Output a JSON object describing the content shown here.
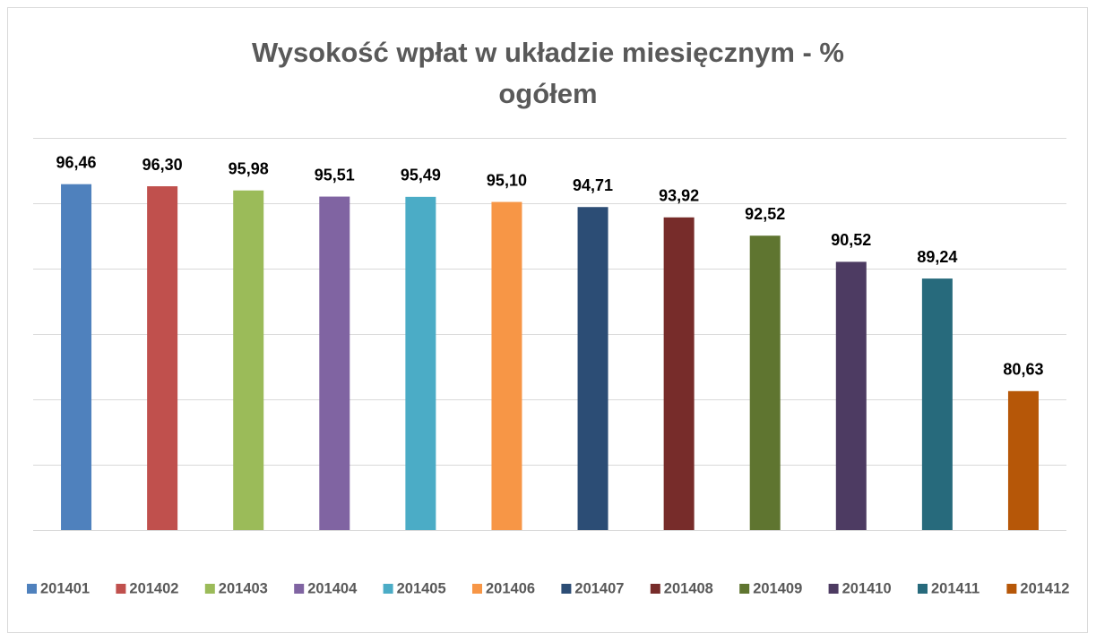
{
  "chart_data": {
    "type": "bar",
    "title": "Wysokość wpłat w układzie miesięcznym - % ogółem",
    "ylim": [
      70,
      100
    ],
    "yticks": [
      70,
      75,
      80,
      85,
      90,
      95,
      100
    ],
    "grid": true,
    "legend": "bottom",
    "series": [
      {
        "name": "201401",
        "color": "#4f81bd",
        "values": [
          96.46
        ],
        "value_labels": [
          "96,46"
        ]
      },
      {
        "name": "201402",
        "color": "#c0504d",
        "values": [
          96.3
        ],
        "value_labels": [
          "96,30"
        ]
      },
      {
        "name": "201403",
        "color": "#9bbb59",
        "values": [
          95.98
        ],
        "value_labels": [
          "95,98"
        ]
      },
      {
        "name": "201404",
        "color": "#8064a2",
        "values": [
          95.51
        ],
        "value_labels": [
          "95,51"
        ]
      },
      {
        "name": "201405",
        "color": "#4bacc6",
        "values": [
          95.49
        ],
        "value_labels": [
          "95,49"
        ]
      },
      {
        "name": "201406",
        "color": "#f79646",
        "values": [
          95.1
        ],
        "value_labels": [
          "95,10"
        ]
      },
      {
        "name": "201407",
        "color": "#2c4d75",
        "values": [
          94.71
        ],
        "value_labels": [
          "94,71"
        ]
      },
      {
        "name": "201408",
        "color": "#772c2a",
        "values": [
          93.92
        ],
        "value_labels": [
          "93,92"
        ]
      },
      {
        "name": "201409",
        "color": "#5f7530",
        "values": [
          92.52
        ],
        "value_labels": [
          "92,52"
        ]
      },
      {
        "name": "201410",
        "color": "#4d3b62",
        "values": [
          90.52
        ],
        "value_labels": [
          "90,52"
        ]
      },
      {
        "name": "201411",
        "color": "#276a7c",
        "values": [
          89.24
        ],
        "value_labels": [
          "89,24"
        ]
      },
      {
        "name": "201412",
        "color": "#b65708",
        "values": [
          80.63
        ],
        "value_labels": [
          "80,63"
        ]
      }
    ]
  }
}
